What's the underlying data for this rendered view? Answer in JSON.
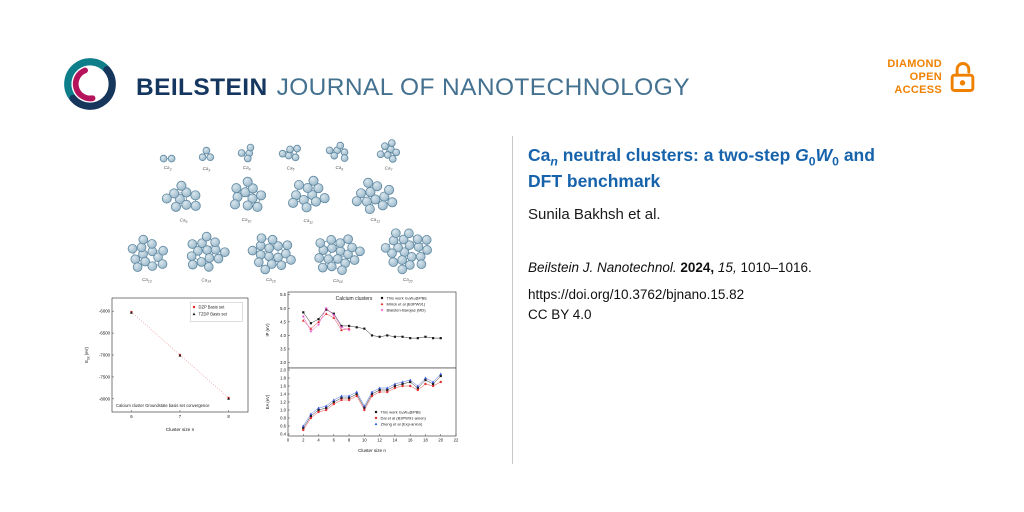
{
  "header": {
    "journal_bold": "BEILSTEIN",
    "journal_rest": "JOURNAL OF NANOTECHNOLOGY",
    "open_access": {
      "line1": "DIAMOND",
      "line2": "OPEN",
      "line3": "ACCESS",
      "color": "#f08100"
    }
  },
  "article": {
    "title": {
      "pre": "Ca",
      "n": "n",
      "mid": " neutral clusters: a two-step ",
      "G": "G",
      "G0": "0",
      "W": "W",
      "W0": "0",
      "post": " and",
      "line2": "DFT benchmark"
    },
    "authors": "Sunila Bakhsh et al.",
    "citation": {
      "journal": "Beilstein J. Nanotechnol.",
      "year": "2024,",
      "volume": "15,",
      "pages": "1010–1016."
    },
    "doi": "https://doi.org/10.3762/bjnano.15.82",
    "license": "CC BY 4.0"
  },
  "figure": {
    "element": "Ca",
    "rows": [
      {
        "atom_r": 3.4,
        "gap": 22,
        "clusters": [
          2,
          3,
          4,
          5,
          6,
          7
        ]
      },
      {
        "atom_r": 4.6,
        "gap": 20,
        "clusters": [
          9,
          10,
          11,
          12
        ]
      },
      {
        "atom_r": 4.4,
        "gap": 14,
        "clusters": [
          13,
          14,
          16,
          18,
          20
        ]
      }
    ],
    "atom_colors": {
      "fill_light": "#d9e6ed",
      "fill_dark": "#8fb0c4",
      "stroke": "#5e87a0",
      "bond": "#7d9db4"
    }
  },
  "chart_data": [
    {
      "type": "scatter",
      "title": "Calcium cluster Groundstate basis set convergence",
      "xlabel": "Cluster size n",
      "xlim": [
        5.6,
        8.4
      ],
      "xticks": [
        6,
        7,
        8
      ],
      "xdec": 0,
      "panels": [
        {
          "ylabel": "E_tot (eV)",
          "ylim": [
            -8300,
            -5700
          ],
          "yticks": [
            -6000,
            -6500,
            -7000,
            -7500,
            -8000
          ],
          "ydec": 0,
          "series": [
            {
              "name": "DZP Basis set",
              "color": "#e03131",
              "marker": "square",
              "line": "dotted",
              "x": [
                6,
                7,
                8
              ],
              "y": [
                -6020,
                -7000,
                -7980
              ]
            },
            {
              "name": "TZDP Basis set",
              "color": "#1a1a1a",
              "marker": "triangle",
              "line": "none",
              "x": [
                6,
                7,
                8
              ],
              "y": [
                -6035,
                -7012,
                -7995
              ]
            }
          ],
          "legend": {
            "pos": "top-right",
            "boxed": true
          }
        }
      ]
    },
    {
      "type": "scatter",
      "title": "Calcium clusters",
      "xlabel": "Cluster size n",
      "xlim": [
        0,
        22
      ],
      "xticks": [
        0,
        2,
        4,
        6,
        8,
        10,
        12,
        14,
        16,
        18,
        20,
        22
      ],
      "xdec": 0,
      "panels": [
        {
          "ylabel": "IP (eV)",
          "ylim": [
            2.8,
            5.6
          ],
          "yticks": [
            3.0,
            3.5,
            4.0,
            4.5,
            5.0,
            5.5
          ],
          "ydec": 1,
          "series": [
            {
              "name": "This work G₀W₀@PBE",
              "color": "#1a1a1a",
              "marker": "square",
              "line": "solid",
              "x": [
                2,
                3,
                4,
                5,
                6,
                7,
                8,
                9,
                10,
                11,
                12,
                13,
                14,
                15,
                16,
                17,
                18,
                19,
                20
              ],
              "y": [
                4.85,
                4.45,
                4.6,
                4.95,
                4.8,
                4.35,
                4.35,
                4.3,
                4.25,
                4.0,
                3.95,
                4.0,
                3.95,
                3.95,
                3.9,
                3.9,
                3.95,
                3.9,
                3.9
              ]
            },
            {
              "name": "Mirick et al (B3PW91)",
              "color": "#e03131",
              "marker": "triangle",
              "line": "solid",
              "x": [
                2,
                3,
                4,
                5,
                6,
                7,
                8
              ],
              "y": [
                4.55,
                4.25,
                4.5,
                4.8,
                4.65,
                4.2,
                4.25
              ]
            },
            {
              "name": "Blaisten-Barojas (MD)",
              "color": "#e64bc8",
              "marker": "star",
              "line": "solid",
              "x": [
                2,
                3,
                4,
                5,
                6,
                7,
                8
              ],
              "y": [
                4.7,
                4.15,
                4.4,
                5.0,
                4.75,
                4.3,
                4.2
              ]
            }
          ],
          "legend": {
            "pos": "top-right",
            "boxed": false
          }
        },
        {
          "ylabel": "EA (eV)",
          "ylim": [
            0.35,
            2.05
          ],
          "yticks": [
            0.4,
            0.6,
            0.8,
            1.0,
            1.2,
            1.4,
            1.6,
            1.8,
            2.0
          ],
          "ydec": 1,
          "series": [
            {
              "name": "This work G₀W₀@PBE",
              "color": "#1a1a1a",
              "marker": "square",
              "line": "solid",
              "x": [
                2,
                3,
                4,
                5,
                6,
                7,
                8,
                9,
                10,
                11,
                12,
                13,
                14,
                15,
                16,
                17,
                18,
                19,
                20
              ],
              "y": [
                0.55,
                0.85,
                1.0,
                1.05,
                1.2,
                1.3,
                1.3,
                1.4,
                1.05,
                1.4,
                1.5,
                1.5,
                1.6,
                1.65,
                1.7,
                1.55,
                1.75,
                1.65,
                1.85
              ]
            },
            {
              "name": "Dai et al (B3PW91-anion)",
              "color": "#e03131",
              "marker": "circle",
              "line": "solid",
              "x": [
                2,
                3,
                4,
                5,
                6,
                7,
                8,
                9,
                10,
                11,
                12,
                13,
                14,
                15,
                16,
                17,
                18,
                19,
                20
              ],
              "y": [
                0.5,
                0.8,
                0.95,
                1.0,
                1.15,
                1.25,
                1.25,
                1.35,
                1.0,
                1.35,
                1.45,
                1.45,
                1.55,
                1.6,
                1.6,
                1.5,
                1.65,
                1.6,
                1.7
              ]
            },
            {
              "name": "Zheng et al (Exp-anion)",
              "color": "#3b5bdb",
              "marker": "triangle",
              "line": "solid",
              "x": [
                2,
                3,
                4,
                5,
                6,
                7,
                8,
                9,
                10,
                11,
                12,
                13,
                14,
                15,
                16,
                17,
                18,
                19,
                20
              ],
              "y": [
                0.6,
                0.9,
                1.05,
                1.1,
                1.25,
                1.35,
                1.35,
                1.45,
                1.1,
                1.45,
                1.55,
                1.55,
                1.65,
                1.7,
                1.75,
                1.6,
                1.8,
                1.7,
                1.9
              ]
            }
          ],
          "legend": {
            "pos": "bottom-right",
            "boxed": false
          }
        }
      ]
    }
  ]
}
